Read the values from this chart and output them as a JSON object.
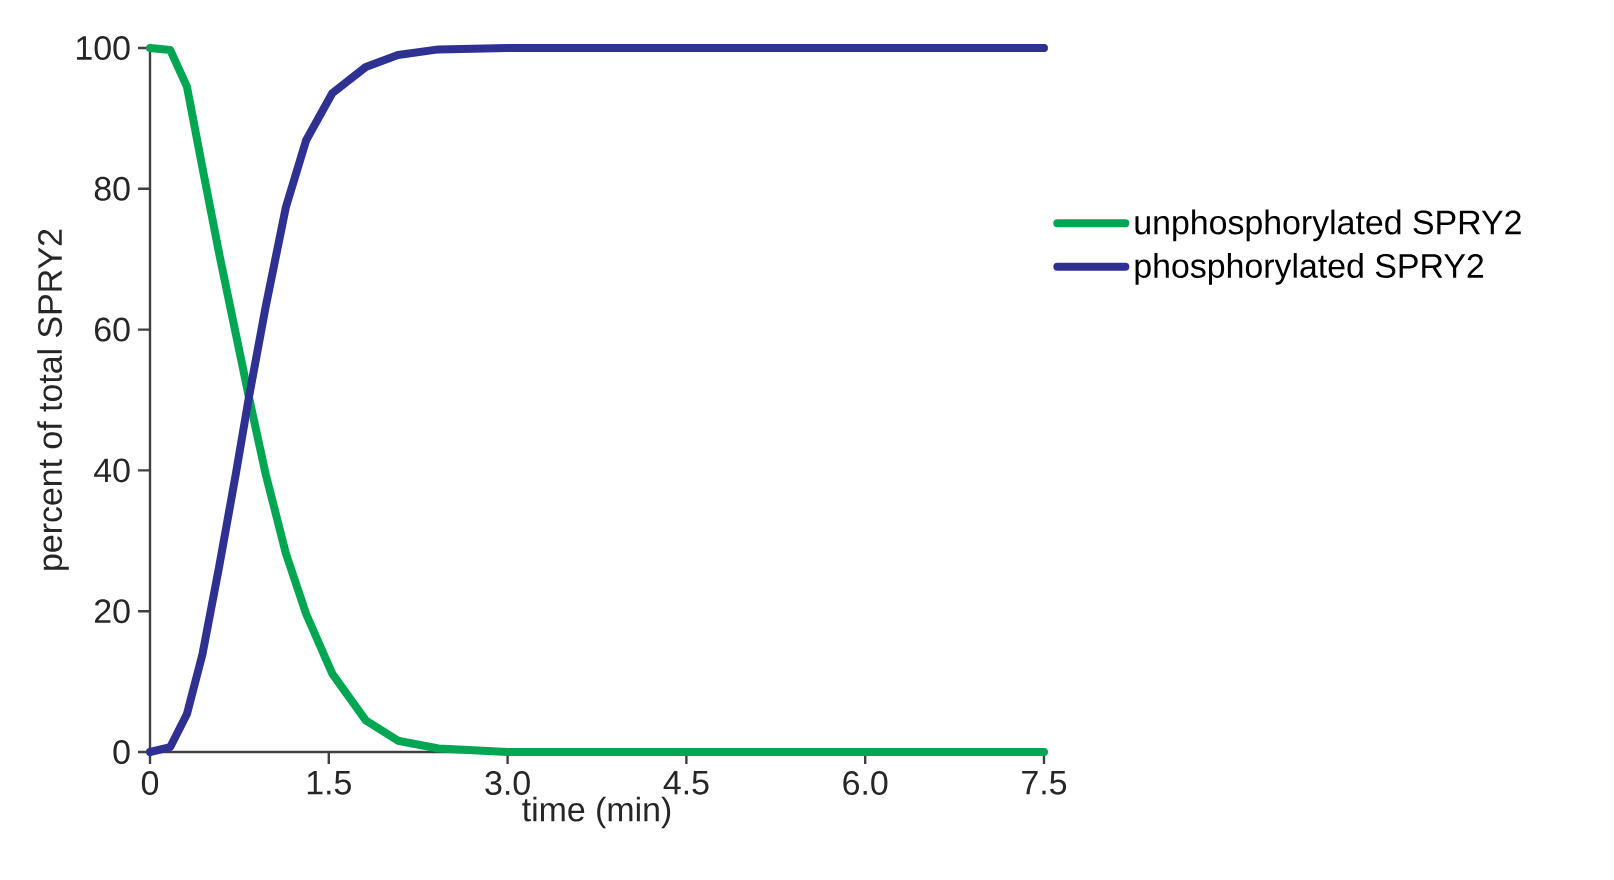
{
  "chart_data": {
    "type": "line",
    "xlabel": "time (min)",
    "ylabel": "percent of total SPRY2",
    "xlim": [
      0,
      7.5
    ],
    "ylim": [
      0,
      100
    ],
    "xticks": [
      {
        "value": 0,
        "label": "0"
      },
      {
        "value": 1.5,
        "label": "1.5"
      },
      {
        "value": 3,
        "label": "3.0"
      },
      {
        "value": 4.5,
        "label": "4.5"
      },
      {
        "value": 6,
        "label": "6.0"
      },
      {
        "value": 7.5,
        "label": "7.5"
      }
    ],
    "yticks": [
      0,
      20,
      40,
      60,
      80,
      100
    ],
    "grid": false,
    "legend": "right",
    "marker": "none",
    "line_style": "solid",
    "series": [
      {
        "name": "unphosphorylated SPRY2",
        "color": "#00a651",
        "x": [
          0,
          0.17,
          0.31,
          0.44,
          0.58,
          0.72,
          0.83,
          0.97,
          1.14,
          1.31,
          1.53,
          1.81,
          2.08,
          2.42,
          3.0,
          4.5,
          6.0,
          7.5
        ],
        "values": [
          100,
          99.7,
          94.5,
          83,
          70.8,
          59.4,
          50.4,
          39.5,
          28.2,
          19.6,
          11.1,
          4.5,
          1.6,
          0.5,
          0,
          0,
          0,
          0
        ]
      },
      {
        "name": "phosphorylated SPRY2",
        "color": "#2e3192",
        "x": [
          0,
          0.17,
          0.31,
          0.44,
          0.58,
          0.72,
          0.83,
          0.97,
          1.14,
          1.31,
          1.53,
          1.81,
          2.08,
          2.42,
          3.0,
          4.5,
          6.0,
          7.5
        ],
        "values": [
          0,
          0.7,
          5.4,
          13.9,
          26.3,
          39.5,
          50.4,
          63.2,
          77.4,
          86.9,
          93.6,
          97.3,
          99,
          99.8,
          100,
          100,
          100,
          100
        ]
      }
    ]
  }
}
